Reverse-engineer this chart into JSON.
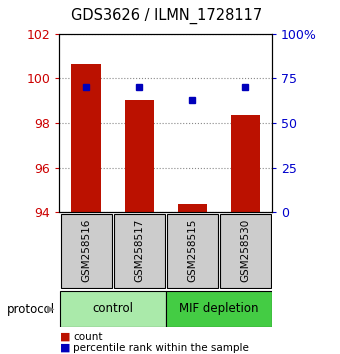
{
  "title": "GDS3626 / ILMN_1728117",
  "samples": [
    "GSM258516",
    "GSM258517",
    "GSM258515",
    "GSM258530"
  ],
  "bar_values": [
    100.65,
    99.05,
    94.38,
    98.35
  ],
  "bar_base": 94.0,
  "percentile_values": [
    70,
    70,
    63,
    70
  ],
  "ylim_left": [
    94,
    102
  ],
  "ylim_right": [
    0,
    100
  ],
  "yticks_left": [
    94,
    96,
    98,
    100,
    102
  ],
  "yticks_right": [
    0,
    25,
    50,
    75,
    100
  ],
  "ytick_labels_right": [
    "0",
    "25",
    "50",
    "75",
    "100%"
  ],
  "bar_color": "#bb1100",
  "percentile_color": "#0000bb",
  "bar_width": 0.55,
  "control_color": "#aaeaaa",
  "mif_color": "#44cc44",
  "protocol_label": "protocol",
  "legend_count_label": "count",
  "legend_percentile_label": "percentile rank within the sample",
  "tick_label_color_left": "#cc0000",
  "tick_label_color_right": "#0000cc",
  "grid_color": "#888888",
  "sample_box_color": "#cccccc"
}
